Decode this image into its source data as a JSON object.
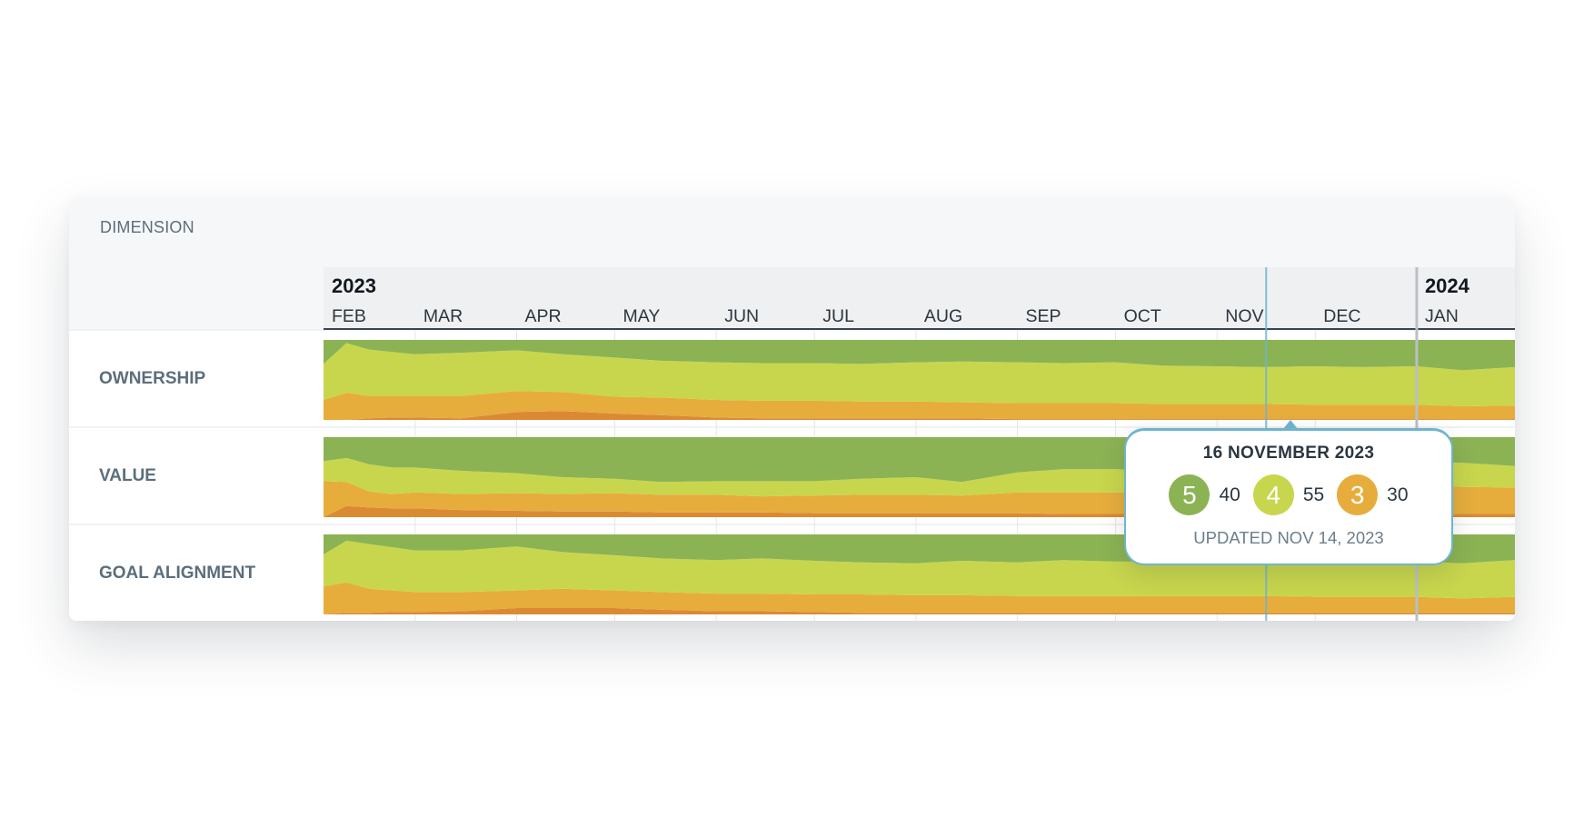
{
  "header": {
    "dimension_label": "DIMENSION"
  },
  "colors": {
    "score_5": "#8bb354",
    "score_4": "#c8d64d",
    "score_3": "#e6ad3d",
    "score_2": "#dc8a32",
    "marker": "#6fb4cf"
  },
  "chart_data": {
    "type": "area",
    "stacked": true,
    "normalized": true,
    "x_axis": {
      "start": "2023-02-01",
      "end": "2024-01-31",
      "years": [
        {
          "label": "2023",
          "start": "2023-02-01"
        },
        {
          "label": "2024",
          "start": "2024-01-01"
        }
      ],
      "months": [
        {
          "label": "FEB",
          "start": "2023-02-01"
        },
        {
          "label": "MAR",
          "start": "2023-03-01"
        },
        {
          "label": "APR",
          "start": "2023-04-01"
        },
        {
          "label": "MAY",
          "start": "2023-05-01"
        },
        {
          "label": "JUN",
          "start": "2023-06-01"
        },
        {
          "label": "JUL",
          "start": "2023-07-01"
        },
        {
          "label": "AUG",
          "start": "2023-08-01"
        },
        {
          "label": "SEP",
          "start": "2023-09-01"
        },
        {
          "label": "OCT",
          "start": "2023-10-01"
        },
        {
          "label": "NOV",
          "start": "2023-11-01"
        },
        {
          "label": "DEC",
          "start": "2023-12-01"
        },
        {
          "label": "JAN",
          "start": "2024-01-01"
        }
      ]
    },
    "rows": [
      {
        "name": "OWNERSHIP",
        "x": [
          "2023-02-01",
          "2023-02-08",
          "2023-02-15",
          "2023-02-22",
          "2023-03-01",
          "2023-03-15",
          "2023-04-01",
          "2023-04-15",
          "2023-05-01",
          "2023-05-15",
          "2023-06-01",
          "2023-06-15",
          "2023-07-01",
          "2023-07-15",
          "2023-08-01",
          "2023-08-15",
          "2023-09-01",
          "2023-09-15",
          "2023-10-01",
          "2023-10-15",
          "2023-11-01",
          "2023-11-15",
          "2023-12-01",
          "2023-12-15",
          "2024-01-01",
          "2024-01-15",
          "2024-01-31"
        ],
        "score_5": [
          30,
          4,
          12,
          15,
          18,
          16,
          13,
          18,
          22,
          26,
          28,
          29,
          29,
          30,
          28,
          27,
          28,
          29,
          28,
          32,
          33,
          34,
          33,
          34,
          33,
          38,
          34
        ],
        "score_4": [
          45,
          62,
          58,
          55,
          52,
          54,
          51,
          47,
          49,
          46,
          47,
          47,
          47,
          47,
          49,
          51,
          51,
          50,
          51,
          48,
          47,
          46,
          48,
          47,
          48,
          45,
          48
        ],
        "score_3": [
          25,
          34,
          28,
          27,
          27,
          28,
          26,
          24,
          21,
          22,
          22,
          22,
          22,
          21,
          21,
          20,
          20,
          20,
          20,
          19,
          19,
          19,
          18,
          18,
          18,
          16,
          17
        ],
        "score_2": [
          0,
          0,
          2,
          3,
          3,
          2,
          10,
          11,
          8,
          6,
          3,
          2,
          2,
          2,
          2,
          2,
          1,
          1,
          1,
          1,
          1,
          1,
          1,
          1,
          1,
          1,
          1
        ]
      },
      {
        "name": "VALUE",
        "x": [
          "2023-02-01",
          "2023-02-08",
          "2023-02-15",
          "2023-02-22",
          "2023-03-01",
          "2023-03-15",
          "2023-04-01",
          "2023-04-15",
          "2023-05-01",
          "2023-05-15",
          "2023-06-01",
          "2023-06-15",
          "2023-07-01",
          "2023-07-15",
          "2023-08-01",
          "2023-08-15",
          "2023-09-01",
          "2023-09-15",
          "2023-10-01",
          "2023-10-15",
          "2023-11-01",
          "2023-11-15",
          "2023-12-01",
          "2023-12-15",
          "2024-01-01",
          "2024-01-15",
          "2024-01-31"
        ],
        "score_5": [
          30,
          26,
          34,
          38,
          38,
          42,
          45,
          50,
          52,
          56,
          55,
          55,
          55,
          52,
          50,
          56,
          44,
          40,
          40,
          42,
          38,
          36,
          38,
          34,
          30,
          32,
          36
        ],
        "score_4": [
          25,
          30,
          34,
          33,
          31,
          29,
          25,
          21,
          18,
          16,
          17,
          19,
          18,
          20,
          22,
          17,
          25,
          29,
          29,
          27,
          31,
          30,
          26,
          30,
          31,
          30,
          27
        ],
        "score_3": [
          45,
          30,
          20,
          18,
          20,
          20,
          22,
          22,
          23,
          22,
          22,
          20,
          22,
          23,
          23,
          22,
          26,
          27,
          27,
          27,
          27,
          30,
          32,
          32,
          34,
          34,
          33
        ],
        "score_2": [
          0,
          14,
          12,
          11,
          11,
          9,
          8,
          7,
          7,
          6,
          6,
          6,
          5,
          5,
          5,
          5,
          5,
          4,
          4,
          4,
          4,
          4,
          4,
          4,
          5,
          4,
          4
        ]
      },
      {
        "name": "GOAL ALIGNMENT",
        "x": [
          "2023-02-01",
          "2023-02-08",
          "2023-02-15",
          "2023-02-22",
          "2023-03-01",
          "2023-03-15",
          "2023-04-01",
          "2023-04-15",
          "2023-05-01",
          "2023-05-15",
          "2023-06-01",
          "2023-06-15",
          "2023-07-01",
          "2023-07-15",
          "2023-08-01",
          "2023-08-15",
          "2023-09-01",
          "2023-09-15",
          "2023-10-01",
          "2023-10-15",
          "2023-11-01",
          "2023-11-15",
          "2023-12-01",
          "2023-12-15",
          "2024-01-01",
          "2024-01-15",
          "2024-01-31"
        ],
        "score_5": [
          25,
          8,
          12,
          16,
          20,
          20,
          15,
          22,
          26,
          30,
          32,
          30,
          33,
          35,
          36,
          33,
          35,
          32,
          34,
          34,
          33,
          34,
          35,
          33,
          34,
          36,
          32
        ],
        "score_4": [
          40,
          52,
          56,
          54,
          52,
          52,
          55,
          46,
          44,
          42,
          42,
          44,
          42,
          40,
          40,
          43,
          42,
          45,
          43,
          43,
          44,
          43,
          43,
          45,
          44,
          44,
          46
        ],
        "score_3": [
          35,
          38,
          30,
          27,
          25,
          24,
          22,
          24,
          22,
          22,
          22,
          22,
          22,
          23,
          22,
          22,
          21,
          21,
          21,
          21,
          21,
          21,
          20,
          20,
          20,
          18,
          20
        ],
        "score_2": [
          0,
          2,
          2,
          3,
          3,
          4,
          8,
          8,
          8,
          6,
          4,
          4,
          3,
          2,
          2,
          2,
          2,
          2,
          2,
          2,
          2,
          2,
          2,
          2,
          2,
          2,
          2
        ]
      }
    ],
    "highlight_date": "2023-11-16",
    "today_date": "2024-01-01"
  },
  "tooltip": {
    "date": "16 NOVEMBER 2023",
    "scores": [
      {
        "score": "5",
        "count": "40",
        "color": "#8bb354"
      },
      {
        "score": "4",
        "count": "55",
        "color": "#c8d64d"
      },
      {
        "score": "3",
        "count": "30",
        "color": "#e6ad3d"
      }
    ],
    "updated": "UPDATED NOV 14, 2023"
  }
}
